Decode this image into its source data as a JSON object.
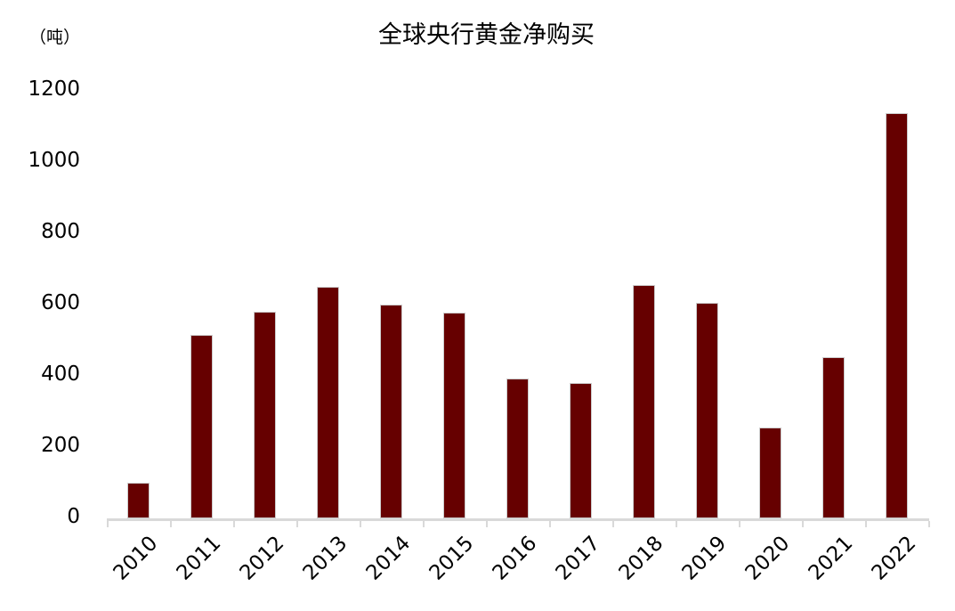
{
  "chart_data": {
    "type": "bar",
    "title": "全球央行黄金净购买",
    "unit_label": "（吨）",
    "categories": [
      "2010",
      "2011",
      "2012",
      "2013",
      "2014",
      "2015",
      "2016",
      "2017",
      "2018",
      "2019",
      "2020",
      "2021",
      "2022"
    ],
    "values": [
      100,
      515,
      580,
      650,
      600,
      578,
      393,
      380,
      656,
      606,
      254,
      452,
      1138
    ],
    "xlabel": "",
    "ylabel": "吨",
    "ylim": [
      0,
      1200
    ],
    "yticks": [
      0,
      200,
      400,
      600,
      800,
      1000,
      1200
    ],
    "grid": false,
    "legend": false,
    "bar_color": "#660000",
    "bar_edge_color": "#cccccc",
    "axis_color": "#d9d9d9",
    "text_color": "#000000"
  }
}
